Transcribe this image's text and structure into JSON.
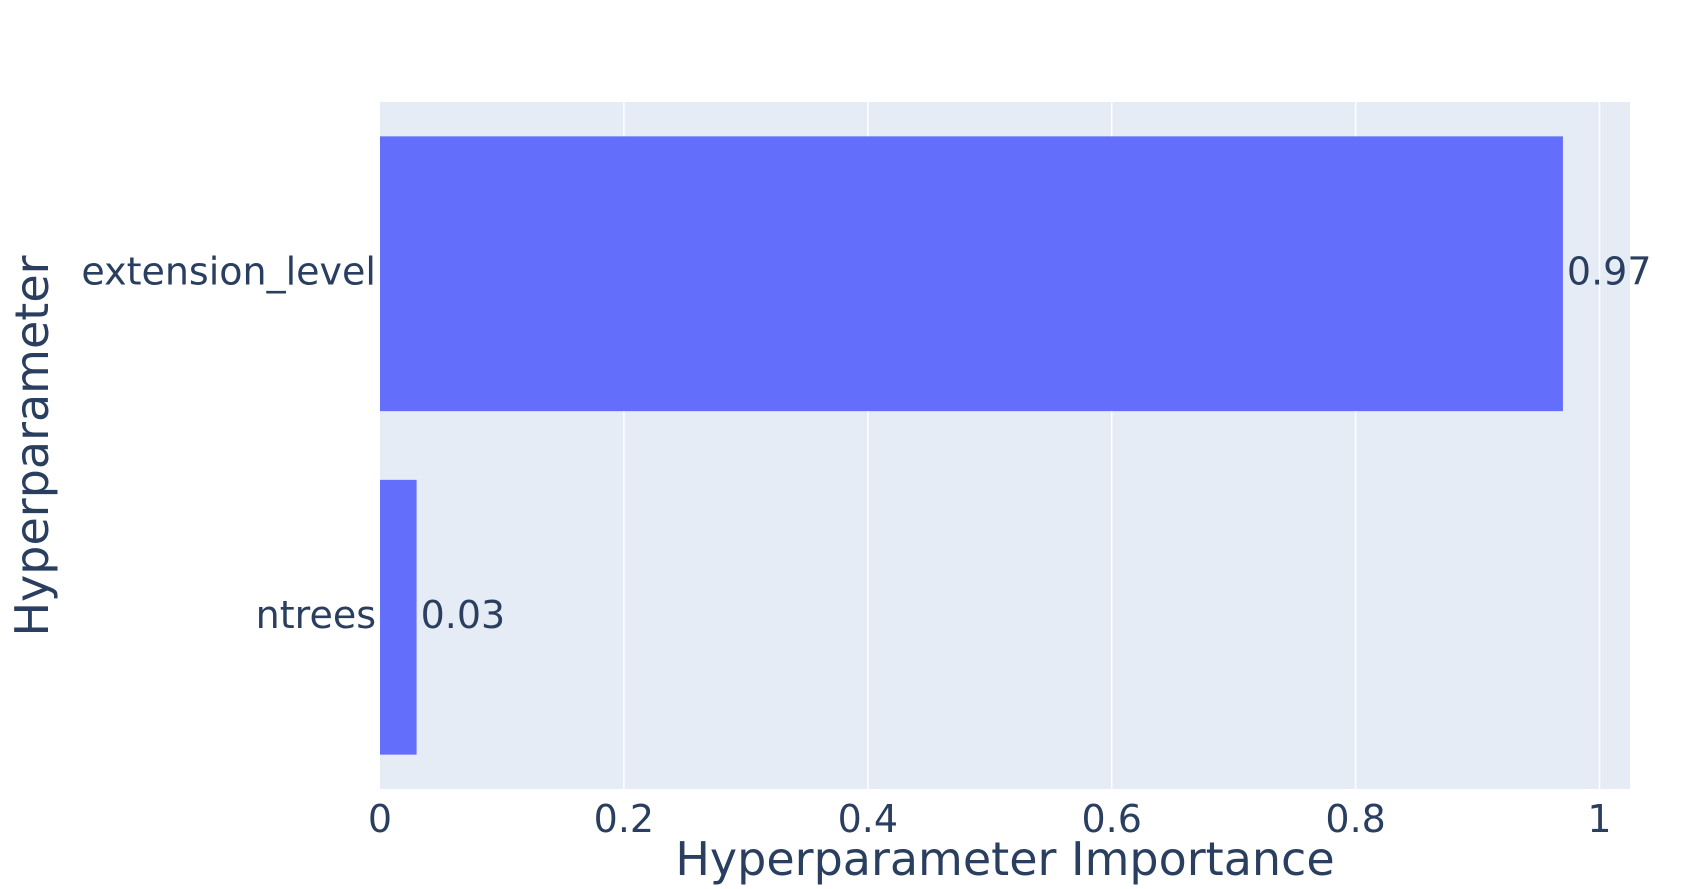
{
  "chart_data": {
    "type": "bar",
    "orientation": "horizontal",
    "categories": [
      "extension_level",
      "ntrees"
    ],
    "values": [
      0.97,
      0.03
    ],
    "value_labels": [
      "0.97",
      "0.03"
    ],
    "xlabel": "Hyperparameter Importance",
    "ylabel": "Hyperparameter",
    "xlim": [
      0,
      1.025
    ],
    "xticks": [
      0,
      0.2,
      0.4,
      0.6,
      0.8,
      1
    ],
    "xtick_labels": [
      "0",
      "0.2",
      "0.4",
      "0.6",
      "0.8",
      "1"
    ],
    "grid": true,
    "legend": "none",
    "colors": {
      "bar": "#636efa",
      "plot_background": "#e5ecf6",
      "text": "#2a3f5f"
    }
  }
}
